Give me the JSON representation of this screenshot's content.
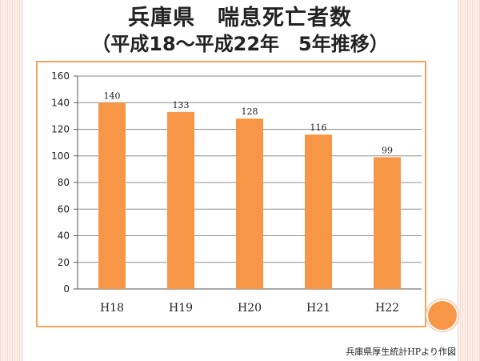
{
  "header": {
    "title": "兵庫県　喘息死亡者数",
    "subtitle": "（平成18〜平成22年　5年推移）"
  },
  "footer": {
    "source": "兵庫県厚生統計HPより作図"
  },
  "colors": {
    "bar": "#f79646",
    "frame": "#f4a460",
    "circle": "#f79646"
  },
  "chart_data": {
    "type": "bar",
    "categories": [
      "H18",
      "H19",
      "H20",
      "H21",
      "H22"
    ],
    "values": [
      140,
      133,
      128,
      116,
      99
    ],
    "title": "",
    "xlabel": "",
    "ylabel": "",
    "ylim": [
      0,
      160
    ],
    "yticks": [
      0,
      20,
      40,
      60,
      80,
      100,
      120,
      140,
      160
    ],
    "grid": true,
    "data_labels": true
  }
}
